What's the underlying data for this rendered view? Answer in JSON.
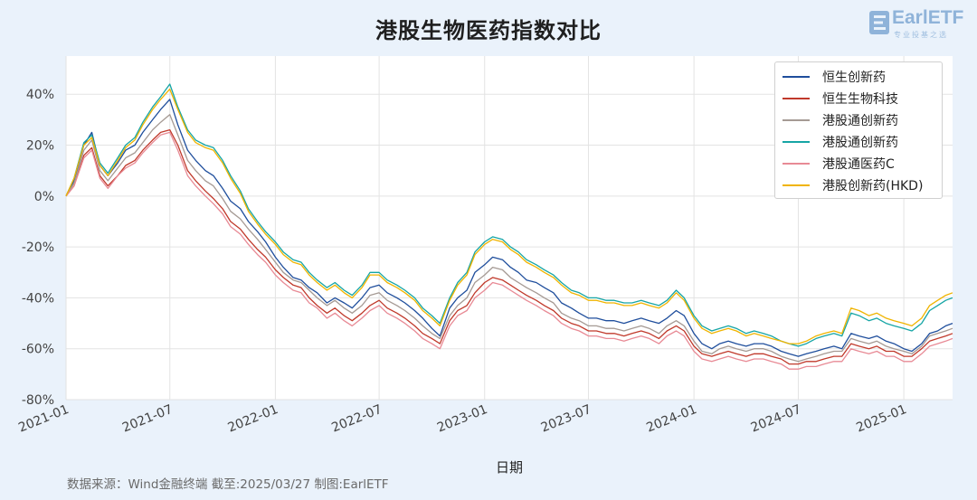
{
  "title": "港股生物医药指数对比",
  "logo": {
    "main": "EarlETF",
    "sub": "专业投基之选"
  },
  "footer": "数据来源：Wind金融终端 截至:2025/03/27 制图:EarlETF",
  "chart_data": {
    "type": "line",
    "xlabel": "日期",
    "ylabel": "",
    "y_tick_labels": [
      "-80%",
      "-60%",
      "-40%",
      "-20%",
      "0%",
      "20%",
      "40%"
    ],
    "x_tick_labels": [
      "2021-01",
      "2021-07",
      "2022-01",
      "2022-07",
      "2023-01",
      "2023-07",
      "2024-01",
      "2024-07",
      "2025-01"
    ],
    "ylim": [
      -80,
      55
    ],
    "xlim": [
      "2021-01-01",
      "2025-03-27"
    ],
    "grid": true,
    "legend_position": "top-right",
    "x": [
      "2021-01-01",
      "2021-01-15",
      "2021-02-01",
      "2021-02-15",
      "2021-03-01",
      "2021-03-15",
      "2021-04-01",
      "2021-04-15",
      "2021-05-01",
      "2021-05-15",
      "2021-06-01",
      "2021-06-15",
      "2021-07-01",
      "2021-07-15",
      "2021-08-01",
      "2021-08-15",
      "2021-09-01",
      "2021-09-15",
      "2021-10-01",
      "2021-10-15",
      "2021-11-01",
      "2021-11-15",
      "2021-12-01",
      "2021-12-15",
      "2022-01-01",
      "2022-01-15",
      "2022-02-01",
      "2022-02-15",
      "2022-03-01",
      "2022-03-15",
      "2022-04-01",
      "2022-04-15",
      "2022-05-01",
      "2022-05-15",
      "2022-06-01",
      "2022-06-15",
      "2022-07-01",
      "2022-07-15",
      "2022-08-01",
      "2022-08-15",
      "2022-09-01",
      "2022-09-15",
      "2022-10-01",
      "2022-10-15",
      "2022-11-01",
      "2022-11-15",
      "2022-12-01",
      "2022-12-15",
      "2023-01-01",
      "2023-01-15",
      "2023-02-01",
      "2023-02-15",
      "2023-03-01",
      "2023-03-15",
      "2023-04-01",
      "2023-04-15",
      "2023-05-01",
      "2023-05-15",
      "2023-06-01",
      "2023-06-15",
      "2023-07-01",
      "2023-07-15",
      "2023-08-01",
      "2023-08-15",
      "2023-09-01",
      "2023-09-15",
      "2023-10-01",
      "2023-10-15",
      "2023-11-01",
      "2023-11-15",
      "2023-12-01",
      "2023-12-15",
      "2024-01-01",
      "2024-01-15",
      "2024-02-01",
      "2024-02-15",
      "2024-03-01",
      "2024-03-15",
      "2024-04-01",
      "2024-04-15",
      "2024-05-01",
      "2024-05-15",
      "2024-06-01",
      "2024-06-15",
      "2024-07-01",
      "2024-07-15",
      "2024-08-01",
      "2024-08-15",
      "2024-09-01",
      "2024-09-15",
      "2024-10-01",
      "2024-10-15",
      "2024-11-01",
      "2024-11-15",
      "2024-12-01",
      "2024-12-15",
      "2025-01-01",
      "2025-01-15",
      "2025-02-01",
      "2025-02-15",
      "2025-03-01",
      "2025-03-15",
      "2025-03-27"
    ],
    "series": [
      {
        "name": "恒生创新药",
        "color": "#1f4e9c",
        "values": [
          0,
          6,
          20,
          25,
          12,
          8,
          13,
          18,
          20,
          25,
          30,
          34,
          38,
          28,
          18,
          14,
          10,
          8,
          3,
          -2,
          -5,
          -10,
          -14,
          -18,
          -24,
          -28,
          -32,
          -33,
          -36,
          -38,
          -42,
          -40,
          -42,
          -44,
          -40,
          -36,
          -35,
          -38,
          -40,
          -42,
          -45,
          -48,
          -52,
          -55,
          -44,
          -40,
          -37,
          -30,
          -27,
          -24,
          -25,
          -28,
          -30,
          -33,
          -34,
          -36,
          -38,
          -42,
          -44,
          -46,
          -48,
          -48,
          -49,
          -49,
          -50,
          -49,
          -48,
          -49,
          -50,
          -48,
          -45,
          -47,
          -54,
          -58,
          -60,
          -58,
          -57,
          -58,
          -59,
          -58,
          -58,
          -59,
          -61,
          -62,
          -63,
          -62,
          -61,
          -60,
          -59,
          -60,
          -54,
          -55,
          -56,
          -55,
          -57,
          -58,
          -60,
          -61,
          -58,
          -54,
          -53,
          -51,
          -50
        ]
      },
      {
        "name": "恒生生物科技",
        "color": "#c0392b",
        "values": [
          0,
          4,
          16,
          19,
          8,
          4,
          8,
          12,
          14,
          18,
          22,
          25,
          26,
          20,
          10,
          6,
          2,
          -1,
          -5,
          -10,
          -13,
          -17,
          -21,
          -24,
          -29,
          -32,
          -35,
          -36,
          -40,
          -43,
          -46,
          -44,
          -47,
          -49,
          -46,
          -43,
          -41,
          -44,
          -46,
          -48,
          -51,
          -54,
          -56,
          -58,
          -49,
          -45,
          -43,
          -38,
          -34,
          -32,
          -33,
          -35,
          -37,
          -39,
          -41,
          -43,
          -45,
          -48,
          -50,
          -51,
          -53,
          -53,
          -54,
          -54,
          -55,
          -54,
          -53,
          -54,
          -56,
          -53,
          -51,
          -53,
          -59,
          -62,
          -63,
          -62,
          -61,
          -62,
          -63,
          -62,
          -62,
          -63,
          -64,
          -66,
          -66,
          -65,
          -65,
          -64,
          -63,
          -63,
          -58,
          -59,
          -60,
          -59,
          -61,
          -61,
          -63,
          -63,
          -60,
          -57,
          -56,
          -55,
          -54
        ]
      },
      {
        "name": "港股通创新药",
        "color": "#a59a94",
        "values": [
          0,
          5,
          18,
          22,
          10,
          6,
          11,
          15,
          17,
          21,
          26,
          29,
          32,
          24,
          14,
          10,
          6,
          4,
          -1,
          -6,
          -9,
          -13,
          -17,
          -21,
          -26,
          -30,
          -33,
          -34,
          -37,
          -40,
          -43,
          -41,
          -44,
          -46,
          -43,
          -39,
          -38,
          -41,
          -43,
          -45,
          -48,
          -51,
          -54,
          -56,
          -47,
          -43,
          -40,
          -34,
          -31,
          -28,
          -29,
          -32,
          -34,
          -36,
          -38,
          -40,
          -42,
          -46,
          -48,
          -49,
          -51,
          -51,
          -52,
          -52,
          -53,
          -52,
          -51,
          -52,
          -54,
          -51,
          -49,
          -51,
          -57,
          -61,
          -62,
          -60,
          -59,
          -60,
          -61,
          -60,
          -60,
          -61,
          -63,
          -64,
          -65,
          -64,
          -63,
          -62,
          -61,
          -61,
          -56,
          -57,
          -58,
          -57,
          -59,
          -60,
          -61,
          -62,
          -59,
          -55,
          -54,
          -53,
          -52
        ]
      },
      {
        "name": "港股通创新药",
        "color": "#16a5a5",
        "values": [
          0,
          7,
          21,
          24,
          13,
          9,
          15,
          20,
          23,
          29,
          35,
          39,
          44,
          35,
          26,
          22,
          20,
          19,
          14,
          8,
          2,
          -5,
          -10,
          -14,
          -18,
          -22,
          -25,
          -26,
          -30,
          -33,
          -36,
          -34,
          -37,
          -39,
          -35,
          -30,
          -30,
          -33,
          -35,
          -37,
          -40,
          -44,
          -47,
          -50,
          -40,
          -34,
          -30,
          -22,
          -18,
          -16,
          -17,
          -20,
          -22,
          -25,
          -27,
          -29,
          -31,
          -34,
          -37,
          -38,
          -40,
          -40,
          -41,
          -41,
          -42,
          -42,
          -41,
          -42,
          -43,
          -41,
          -37,
          -40,
          -47,
          -51,
          -53,
          -52,
          -51,
          -52,
          -54,
          -53,
          -54,
          -55,
          -57,
          -58,
          -59,
          -58,
          -56,
          -55,
          -54,
          -55,
          -46,
          -47,
          -49,
          -48,
          -50,
          -51,
          -52,
          -53,
          -50,
          -45,
          -43,
          -41,
          -40
        ]
      },
      {
        "name": "港股通医药C",
        "color": "#e88a95",
        "values": [
          0,
          4,
          15,
          18,
          7,
          3,
          8,
          11,
          13,
          17,
          21,
          24,
          25,
          18,
          8,
          4,
          0,
          -3,
          -7,
          -12,
          -15,
          -19,
          -23,
          -26,
          -31,
          -34,
          -37,
          -38,
          -42,
          -44,
          -48,
          -46,
          -49,
          -51,
          -48,
          -45,
          -43,
          -46,
          -48,
          -50,
          -53,
          -56,
          -58,
          -60,
          -51,
          -47,
          -45,
          -40,
          -37,
          -34,
          -35,
          -37,
          -39,
          -41,
          -43,
          -45,
          -47,
          -50,
          -52,
          -53,
          -55,
          -55,
          -56,
          -56,
          -57,
          -56,
          -55,
          -56,
          -58,
          -55,
          -53,
          -55,
          -61,
          -64,
          -65,
          -64,
          -63,
          -64,
          -65,
          -64,
          -64,
          -65,
          -66,
          -68,
          -68,
          -67,
          -67,
          -66,
          -65,
          -65,
          -60,
          -61,
          -62,
          -61,
          -63,
          -63,
          -65,
          -65,
          -62,
          -59,
          -58,
          -57,
          -56
        ]
      },
      {
        "name": "港股创新药(HKD)",
        "color": "#f0b400",
        "values": [
          0,
          7,
          20,
          23,
          12,
          8,
          14,
          19,
          22,
          28,
          34,
          38,
          42,
          34,
          25,
          21,
          19,
          18,
          13,
          7,
          1,
          -6,
          -11,
          -15,
          -19,
          -23,
          -26,
          -27,
          -31,
          -34,
          -37,
          -35,
          -38,
          -40,
          -36,
          -31,
          -31,
          -34,
          -36,
          -38,
          -41,
          -45,
          -48,
          -51,
          -41,
          -35,
          -31,
          -23,
          -19,
          -17,
          -18,
          -21,
          -23,
          -26,
          -28,
          -30,
          -32,
          -35,
          -38,
          -39,
          -41,
          -41,
          -42,
          -42,
          -43,
          -43,
          -42,
          -43,
          -44,
          -42,
          -38,
          -41,
          -48,
          -52,
          -54,
          -53,
          -52,
          -53,
          -55,
          -54,
          -55,
          -56,
          -57,
          -58,
          -58,
          -57,
          -55,
          -54,
          -53,
          -54,
          -44,
          -45,
          -47,
          -46,
          -48,
          -49,
          -50,
          -51,
          -48,
          -43,
          -41,
          -39,
          -38
        ]
      }
    ]
  }
}
